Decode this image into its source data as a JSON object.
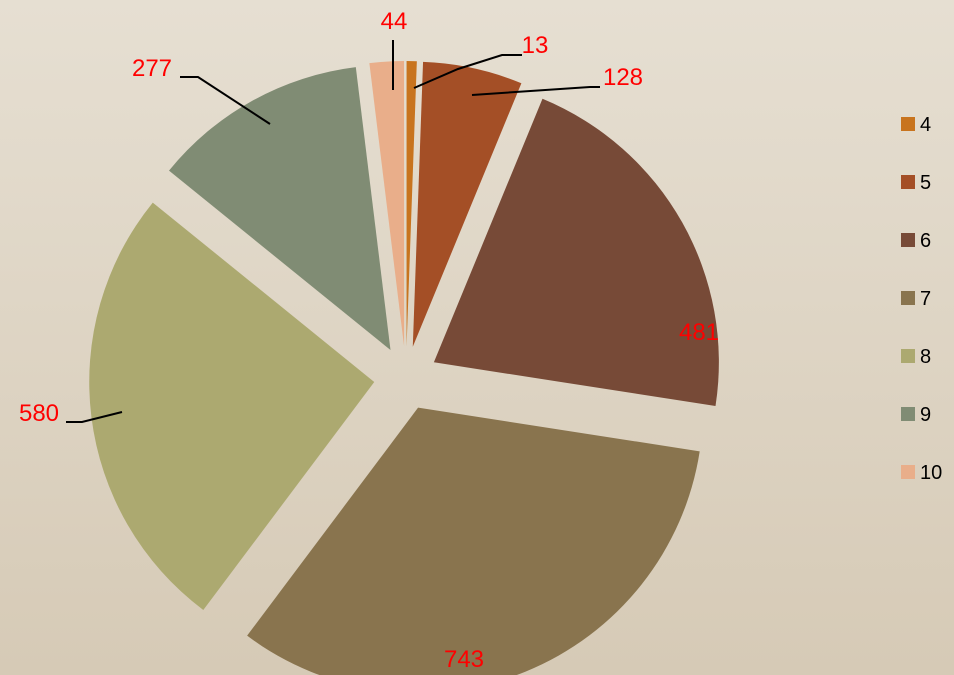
{
  "chart_data": {
    "type": "pie",
    "exploded": true,
    "categories": [
      "4",
      "5",
      "6",
      "7",
      "8",
      "9",
      "10"
    ],
    "values": [
      13,
      128,
      481,
      743,
      580,
      277,
      44
    ],
    "colors": [
      "#c8741e",
      "#a44f26",
      "#774a37",
      "#89744e",
      "#aca970",
      "#808c74",
      "#e9ae8a"
    ],
    "legend_position": "right",
    "data_label_color": "#ff0000",
    "title": ""
  }
}
